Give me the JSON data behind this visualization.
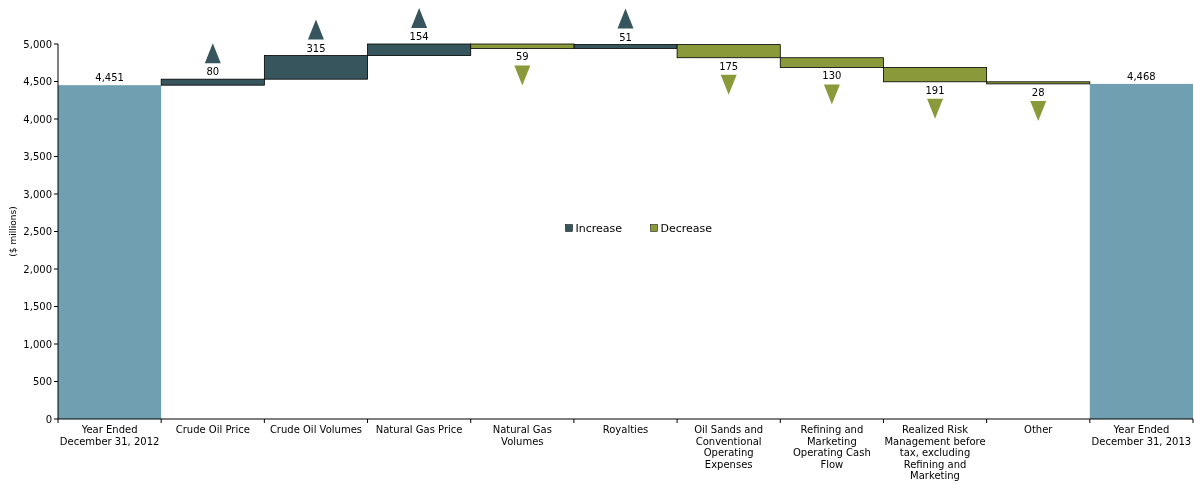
{
  "chart_data": {
    "type": "bar",
    "ylabel": "($ millions)",
    "categories": [
      "Year Ended December 31, 2012",
      "Crude Oil Price",
      "Crude Oil Volumes",
      "Natural Gas Price",
      "Natural Gas Volumes",
      "Royalties",
      "Oil Sands and Conventional Operating Expenses",
      "Refining and Marketing Operating Cash Flow",
      "Realized Risk Management before tax, excluding Refining and Marketing",
      "Other",
      "Year Ended December 31, 2013"
    ],
    "series": [
      {
        "color": "#6f9fb0",
        "base": [
          0,
          null,
          null,
          null,
          null,
          null,
          null,
          null,
          null,
          null,
          0
        ],
        "values": [
          4451,
          null,
          null,
          null,
          null,
          null,
          null,
          null,
          null,
          null,
          4468
        ],
        "value_labels": [
          "4,451",
          null,
          null,
          null,
          null,
          null,
          null,
          null,
          null,
          null,
          "4,468"
        ]
      },
      {
        "name": "Increase",
        "color": "#37555c",
        "base": [
          null,
          4451,
          4531,
          4846,
          null,
          4941,
          null,
          null,
          null,
          null,
          null
        ],
        "values": [
          null,
          80,
          315,
          154,
          null,
          51,
          null,
          null,
          null,
          null,
          null
        ],
        "value_labels": [
          null,
          "80",
          "315",
          "154",
          null,
          "51",
          null,
          null,
          null,
          null,
          null
        ]
      },
      {
        "name": "Decrease",
        "color": "#8a9a3a",
        "base": [
          null,
          null,
          null,
          null,
          5000,
          null,
          4992,
          4817,
          4687,
          4496,
          null
        ],
        "values": [
          null,
          null,
          null,
          null,
          -59,
          null,
          -175,
          -130,
          -191,
          -28,
          null
        ],
        "value_labels": [
          null,
          null,
          null,
          null,
          "59",
          null,
          "175",
          "130",
          "191",
          "28",
          null
        ]
      }
    ],
    "ylim": [
      0,
      5000
    ],
    "yticks": [
      0,
      500,
      {
        "value": 1000,
        "label": "1,000"
      },
      {
        "value": 1500,
        "label": "1,500"
      },
      {
        "value": 2000,
        "label": "2,000"
      },
      {
        "value": 2500,
        "label": "2,500"
      },
      {
        "value": 3000,
        "label": "3,000"
      },
      {
        "value": 3500,
        "label": "3,500"
      },
      {
        "value": 4000,
        "label": "4,000"
      },
      {
        "value": 4500,
        "label": "4,500"
      },
      {
        "value": 5000,
        "label": "5,000"
      }
    ],
    "legend": "center",
    "grid": false
  }
}
